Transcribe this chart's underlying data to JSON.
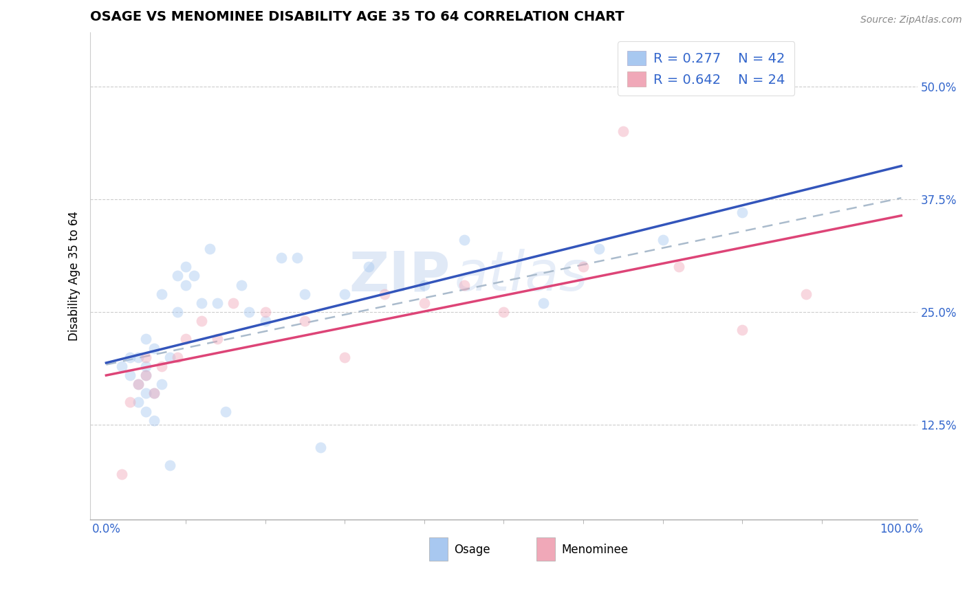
{
  "title": "OSAGE VS MENOMINEE DISABILITY AGE 35 TO 64 CORRELATION CHART",
  "source_text": "Source: ZipAtlas.com",
  "ylabel": "Disability Age 35 to 64",
  "xlabel": "",
  "xlim": [
    -0.02,
    1.02
  ],
  "ylim": [
    0.02,
    0.56
  ],
  "xticks": [
    0.0,
    1.0
  ],
  "xticklabels": [
    "0.0%",
    "100.0%"
  ],
  "yticks": [
    0.125,
    0.25,
    0.375,
    0.5
  ],
  "yticklabels": [
    "12.5%",
    "25.0%",
    "37.5%",
    "50.0%"
  ],
  "osage_color": "#a8c8f0",
  "menominee_color": "#f0a8b8",
  "osage_line_color": "#3355bb",
  "menominee_line_color": "#dd4477",
  "dashed_line_color": "#aabbcc",
  "legend_R_osage": "0.277",
  "legend_N_osage": "42",
  "legend_R_menominee": "0.642",
  "legend_N_menominee": "24",
  "legend_text_color": "#3366cc",
  "tick_label_color": "#3366cc",
  "background_color": "#ffffff",
  "grid_color": "#cccccc",
  "title_fontsize": 14,
  "axis_label_fontsize": 12,
  "tick_fontsize": 12,
  "legend_fontsize": 14,
  "osage_x": [
    0.02,
    0.03,
    0.03,
    0.04,
    0.04,
    0.04,
    0.05,
    0.05,
    0.05,
    0.05,
    0.05,
    0.06,
    0.06,
    0.06,
    0.07,
    0.07,
    0.08,
    0.08,
    0.09,
    0.09,
    0.1,
    0.1,
    0.11,
    0.12,
    0.13,
    0.14,
    0.15,
    0.17,
    0.18,
    0.2,
    0.22,
    0.24,
    0.25,
    0.27,
    0.3,
    0.33,
    0.4,
    0.45,
    0.55,
    0.62,
    0.7,
    0.8
  ],
  "osage_y": [
    0.19,
    0.18,
    0.2,
    0.15,
    0.17,
    0.2,
    0.14,
    0.16,
    0.18,
    0.19,
    0.22,
    0.13,
    0.16,
    0.21,
    0.17,
    0.27,
    0.08,
    0.2,
    0.25,
    0.29,
    0.28,
    0.3,
    0.29,
    0.26,
    0.32,
    0.26,
    0.14,
    0.28,
    0.25,
    0.24,
    0.31,
    0.31,
    0.27,
    0.1,
    0.27,
    0.3,
    0.28,
    0.33,
    0.26,
    0.32,
    0.33,
    0.36
  ],
  "menominee_x": [
    0.02,
    0.03,
    0.04,
    0.05,
    0.05,
    0.06,
    0.07,
    0.09,
    0.1,
    0.12,
    0.14,
    0.16,
    0.2,
    0.25,
    0.3,
    0.35,
    0.4,
    0.45,
    0.5,
    0.6,
    0.65,
    0.72,
    0.8,
    0.88
  ],
  "menominee_y": [
    0.07,
    0.15,
    0.17,
    0.18,
    0.2,
    0.16,
    0.19,
    0.2,
    0.22,
    0.24,
    0.22,
    0.26,
    0.25,
    0.24,
    0.2,
    0.27,
    0.26,
    0.28,
    0.25,
    0.3,
    0.45,
    0.3,
    0.23,
    0.27
  ],
  "watermark_zip": "ZIP",
  "watermark_atlas": "atlas",
  "marker_size": 130,
  "marker_alpha": 0.45,
  "bottom_legend_labels": [
    "Osage",
    "Menominee"
  ]
}
